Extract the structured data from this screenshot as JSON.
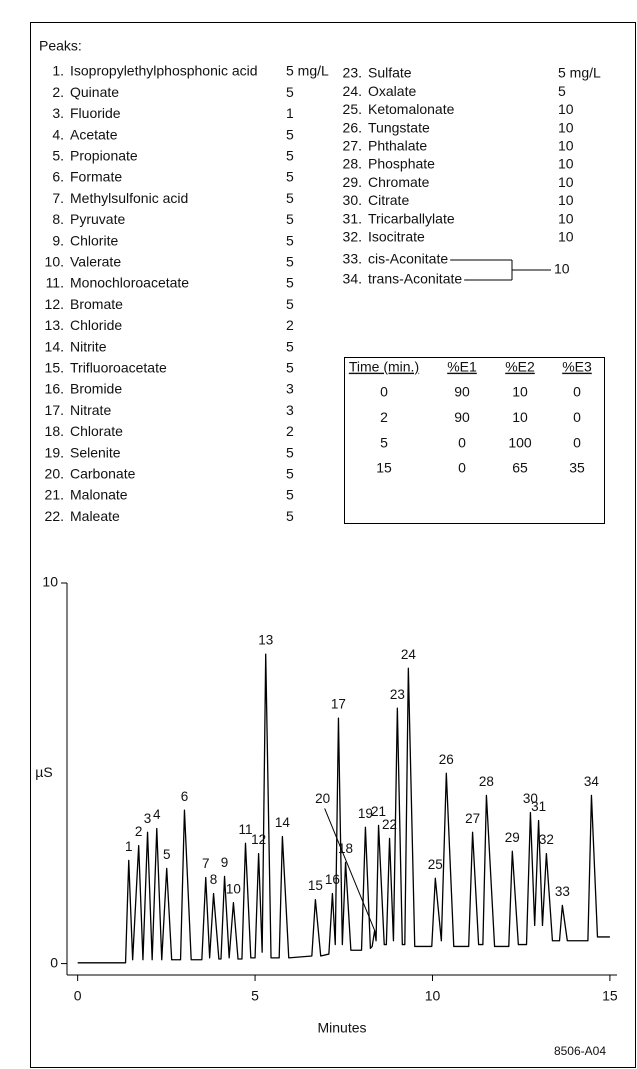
{
  "peaks": {
    "heading": "Peaks:",
    "items": [
      {
        "number": "1.",
        "name": "Isopropylethylphosphonic acid",
        "conc": "5 mg/L"
      },
      {
        "number": "2.",
        "name": "Quinate",
        "conc": 5
      },
      {
        "number": "3.",
        "name": "Fluoride",
        "conc": 1
      },
      {
        "number": "4.",
        "name": "Acetate",
        "conc": 5
      },
      {
        "number": "5.",
        "name": "Propionate",
        "conc": 5
      },
      {
        "number": "6.",
        "name": "Formate",
        "conc": 5
      },
      {
        "number": "7.",
        "name": "Methylsulfonic acid",
        "conc": 5
      },
      {
        "number": "8.",
        "name": "Pyruvate",
        "conc": 5
      },
      {
        "number": "9.",
        "name": "Chlorite",
        "conc": 5
      },
      {
        "number": "10.",
        "name": "Valerate",
        "conc": 5
      },
      {
        "number": "11.",
        "name": "Monochloroacetate",
        "conc": 5
      },
      {
        "number": "12.",
        "name": "Bromate",
        "conc": 5
      },
      {
        "number": "13.",
        "name": "Chloride",
        "conc": 2
      },
      {
        "number": "14.",
        "name": "Nitrite",
        "conc": 5
      },
      {
        "number": "15.",
        "name": "Trifluoroacetate",
        "conc": 5
      },
      {
        "number": "16.",
        "name": "Bromide",
        "conc": 3
      },
      {
        "number": "17.",
        "name": "Nitrate",
        "conc": 3
      },
      {
        "number": "18.",
        "name": "Chlorate",
        "conc": 2
      },
      {
        "number": "19.",
        "name": "Selenite",
        "conc": 5
      },
      {
        "number": "20.",
        "name": "Carbonate",
        "conc": 5
      },
      {
        "number": "21.",
        "name": "Malonate",
        "conc": 5
      },
      {
        "number": "22.",
        "name": "Maleate",
        "conc": 5
      },
      {
        "number": "23.",
        "name": "Sulfate",
        "conc": "5 mg/L"
      },
      {
        "number": "24.",
        "name": "Oxalate",
        "conc": 5
      },
      {
        "number": "25.",
        "name": "Ketomalonate",
        "conc": 10
      },
      {
        "number": "26.",
        "name": "Tungstate",
        "conc": 10
      },
      {
        "number": "27.",
        "name": "Phthalate",
        "conc": 10
      },
      {
        "number": "28.",
        "name": "Phosphate",
        "conc": 10
      },
      {
        "number": "29.",
        "name": "Chromate",
        "conc": 10
      },
      {
        "number": "30.",
        "name": "Citrate",
        "conc": 10
      },
      {
        "number": "31.",
        "name": "Tricarballylate",
        "conc": 10
      },
      {
        "number": "32.",
        "name": "Isocitrate",
        "conc": 10
      }
    ],
    "grouped": {
      "items": [
        {
          "number": "33.",
          "name": "cis-Aconitate"
        },
        {
          "number": "34.",
          "name": "trans-Aconitate"
        }
      ],
      "conc": 10
    }
  },
  "gradient_table": {
    "header": [
      "Time (min.)",
      "%E1",
      "%E2",
      "%E3"
    ],
    "rows": [
      [
        0,
        90,
        10,
        0
      ],
      [
        2,
        90,
        10,
        0
      ],
      [
        5,
        0,
        100,
        0
      ],
      [
        15,
        0,
        65,
        35
      ]
    ]
  },
  "chart_data": {
    "type": "line",
    "color": "#000000",
    "x": [
      0,
      1.35,
      1.44,
      1.55,
      1.72,
      1.84,
      1.97,
      2.1,
      2.23,
      2.37,
      2.51,
      2.65,
      2.9,
      3.01,
      3.2,
      3.5,
      3.61,
      3.72,
      3.83,
      3.98,
      4.04,
      4.14,
      4.27,
      4.39,
      4.52,
      4.63,
      4.73,
      4.88,
      5.0,
      5.1,
      5.2,
      5.3,
      5.45,
      5.68,
      5.77,
      5.95,
      6.6,
      6.7,
      6.85,
      7.08,
      7.18,
      7.26,
      7.35,
      7.46,
      7.55,
      7.7,
      8.0,
      8.11,
      8.25,
      8.3,
      8.37,
      8.41,
      8.48,
      8.64,
      8.7,
      8.79,
      8.9,
      9.01,
      9.15,
      9.22,
      9.32,
      9.5,
      9.98,
      10.08,
      10.25,
      10.39,
      10.6,
      11.02,
      11.13,
      11.3,
      11.42,
      11.52,
      11.75,
      12.15,
      12.25,
      12.42,
      12.65,
      12.76,
      12.88,
      12.99,
      13.1,
      13.21,
      13.38,
      13.58,
      13.66,
      13.8,
      14.38,
      14.48,
      14.65,
      15.0
    ],
    "values": [
      0.02,
      0.02,
      2.71,
      0.1,
      3.1,
      0.1,
      3.45,
      0.1,
      3.55,
      0.1,
      2.5,
      0.1,
      0.1,
      4.03,
      0.1,
      0.1,
      2.26,
      0.15,
      1.84,
      0.12,
      0.12,
      2.29,
      0.15,
      1.6,
      0.12,
      0.12,
      3.16,
      0.15,
      0.15,
      2.89,
      0.3,
      8.13,
      0.15,
      0.15,
      3.34,
      0.15,
      0.2,
      1.68,
      0.2,
      0.25,
      1.84,
      0.5,
      6.45,
      0.5,
      2.66,
      0.35,
      0.35,
      3.58,
      0.4,
      0.45,
      0.87,
      0.6,
      3.63,
      0.5,
      0.5,
      3.29,
      0.6,
      6.71,
      0.5,
      0.5,
      7.76,
      0.45,
      0.45,
      2.24,
      0.6,
      5.0,
      0.45,
      0.45,
      3.45,
      0.5,
      0.5,
      4.42,
      0.45,
      0.45,
      2.95,
      0.5,
      0.5,
      3.97,
      1.0,
      3.76,
      1.0,
      2.89,
      0.6,
      0.6,
      1.53,
      0.6,
      0.6,
      4.42,
      0.7,
      0.7
    ],
    "labels": [
      null,
      null,
      "1",
      null,
      "2",
      null,
      "3",
      null,
      "4",
      null,
      "5",
      null,
      null,
      "6",
      null,
      null,
      "7",
      null,
      "8",
      null,
      null,
      "9",
      null,
      "10",
      null,
      null,
      "11",
      null,
      null,
      "12",
      null,
      "13",
      null,
      null,
      "14",
      null,
      null,
      "15",
      null,
      null,
      "16",
      null,
      "17",
      null,
      "18",
      null,
      null,
      "19",
      null,
      null,
      "20",
      null,
      "21",
      null,
      null,
      "22",
      null,
      "23",
      null,
      null,
      "24",
      null,
      null,
      "25",
      null,
      "26",
      null,
      null,
      "27",
      null,
      null,
      "28",
      null,
      null,
      "29",
      null,
      null,
      "30",
      null,
      "31",
      null,
      "32",
      null,
      null,
      "33",
      null,
      null,
      "34",
      null,
      null
    ],
    "xlim": [
      -0.3,
      15.2
    ],
    "ylim": [
      -0.3,
      10
    ],
    "xticks": [
      0,
      5,
      10,
      15
    ],
    "yticks": [
      0,
      10
    ],
    "xlabel": "Minutes",
    "ylabel": "µS"
  },
  "figure_id": "8506-A04"
}
